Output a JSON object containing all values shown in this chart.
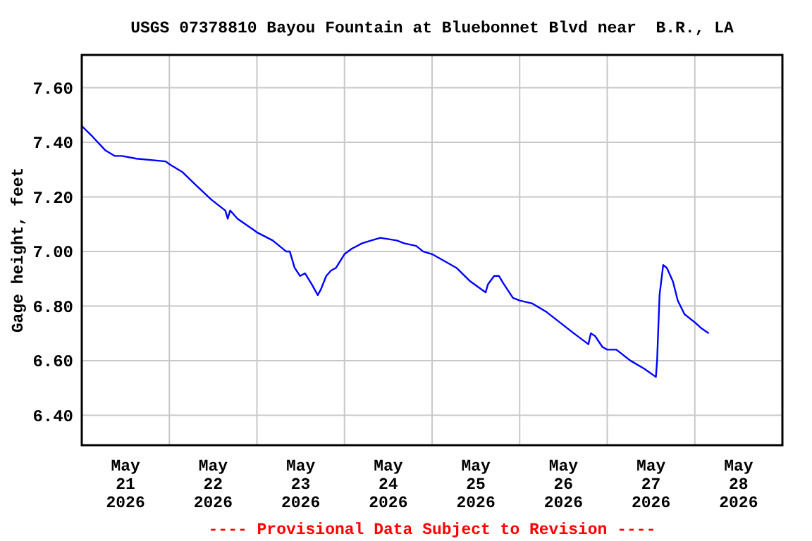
{
  "chart_data": {
    "type": "line",
    "title": "USGS 07378810 Bayou Fountain at Bluebonnet Blvd near  B.R., LA",
    "ylabel": "Gage height, feet",
    "annotations": [
      "---- Provisional Data Subject to Revision ----"
    ],
    "grid": true,
    "xlim": [
      "2026-05-21T00:00",
      "2026-05-29T00:00"
    ],
    "xticks": [
      {
        "value": "2026-05-21T00:00",
        "label": null
      },
      {
        "value": "2026-05-21T12:00",
        "label": "May\n21\n2026"
      },
      {
        "value": "2026-05-22T00:00",
        "label": null
      },
      {
        "value": "2026-05-22T12:00",
        "label": "May\n22\n2026"
      },
      {
        "value": "2026-05-23T00:00",
        "label": null
      },
      {
        "value": "2026-05-23T12:00",
        "label": "May\n23\n2026"
      },
      {
        "value": "2026-05-24T00:00",
        "label": null
      },
      {
        "value": "2026-05-24T12:00",
        "label": "May\n24\n2026"
      },
      {
        "value": "2026-05-25T00:00",
        "label": null
      },
      {
        "value": "2026-05-25T12:00",
        "label": "May\n25\n2026"
      },
      {
        "value": "2026-05-26T00:00",
        "label": null
      },
      {
        "value": "2026-05-26T12:00",
        "label": "May\n26\n2026"
      },
      {
        "value": "2026-05-27T00:00",
        "label": null
      },
      {
        "value": "2026-05-27T12:00",
        "label": "May\n27\n2026"
      },
      {
        "value": "2026-05-28T00:00",
        "label": null
      },
      {
        "value": "2026-05-28T12:00",
        "label": "May\n28\n2026"
      }
    ],
    "ylim": [
      6.29,
      7.72
    ],
    "yticks": [
      {
        "value": 6.4,
        "label": "6.40"
      },
      {
        "value": 6.6,
        "label": "6.60"
      },
      {
        "value": 6.8,
        "label": "6.80"
      },
      {
        "value": 7.0,
        "label": "7.00"
      },
      {
        "value": 7.2,
        "label": "7.20"
      },
      {
        "value": 7.4,
        "label": "7.40"
      },
      {
        "value": 7.6,
        "label": "7.60"
      }
    ],
    "series": [
      {
        "color": "#0000ff",
        "x": [
          "2026-05-21T00:00",
          "2026-05-21T03:00",
          "2026-05-21T06:30",
          "2026-05-21T09:00",
          "2026-05-21T11:00",
          "2026-05-21T15:00",
          "2026-05-21T23:00",
          "2026-05-22T00:00",
          "2026-05-22T03:40",
          "2026-05-22T07:30",
          "2026-05-22T11:30",
          "2026-05-22T15:20",
          "2026-05-22T16:00",
          "2026-05-22T16:40",
          "2026-05-22T18:40",
          "2026-05-22T23:00",
          "2026-05-23T00:00",
          "2026-05-23T04:20",
          "2026-05-23T08:00",
          "2026-05-23T09:00",
          "2026-05-23T10:20",
          "2026-05-23T11:50",
          "2026-05-23T13:10",
          "2026-05-23T15:00",
          "2026-05-23T16:40",
          "2026-05-23T17:30",
          "2026-05-23T19:00",
          "2026-05-23T20:20",
          "2026-05-23T21:40",
          "2026-05-24T00:00",
          "2026-05-24T02:00",
          "2026-05-24T04:50",
          "2026-05-24T07:20",
          "2026-05-24T09:50",
          "2026-05-24T14:20",
          "2026-05-24T16:20",
          "2026-05-24T19:40",
          "2026-05-24T21:30",
          "2026-05-25T00:00",
          "2026-05-25T02:40",
          "2026-05-25T06:40",
          "2026-05-25T10:30",
          "2026-05-25T14:40",
          "2026-05-25T15:20",
          "2026-05-25T17:00",
          "2026-05-25T18:20",
          "2026-05-25T19:40",
          "2026-05-25T22:10",
          "2026-05-26T00:00",
          "2026-05-26T03:20",
          "2026-05-26T07:10",
          "2026-05-26T11:00",
          "2026-05-26T14:50",
          "2026-05-26T18:50",
          "2026-05-26T19:30",
          "2026-05-26T20:40",
          "2026-05-26T22:40",
          "2026-05-27T00:00",
          "2026-05-27T02:30",
          "2026-05-27T06:20",
          "2026-05-27T10:10",
          "2026-05-27T13:20",
          "2026-05-27T13:40",
          "2026-05-27T14:20",
          "2026-05-27T15:20",
          "2026-05-27T16:20",
          "2026-05-27T18:00",
          "2026-05-27T19:20",
          "2026-05-27T21:10",
          "2026-05-28T00:00",
          "2026-05-28T01:40",
          "2026-05-28T03:50"
        ],
        "values": [
          7.46,
          7.42,
          7.37,
          7.35,
          7.35,
          7.34,
          7.33,
          7.32,
          7.29,
          7.24,
          7.19,
          7.15,
          7.12,
          7.15,
          7.12,
          7.08,
          7.07,
          7.04,
          7.0,
          7.0,
          6.94,
          6.91,
          6.92,
          6.88,
          6.84,
          6.86,
          6.91,
          6.93,
          6.94,
          6.99,
          7.01,
          7.03,
          7.04,
          7.05,
          7.04,
          7.03,
          7.02,
          7.0,
          6.99,
          6.97,
          6.94,
          6.89,
          6.85,
          6.88,
          6.91,
          6.91,
          6.88,
          6.83,
          6.82,
          6.81,
          6.78,
          6.74,
          6.7,
          6.66,
          6.7,
          6.69,
          6.65,
          6.64,
          6.64,
          6.6,
          6.57,
          6.54,
          6.6,
          6.84,
          6.95,
          6.94,
          6.89,
          6.82,
          6.77,
          6.74,
          6.72,
          6.7
        ]
      }
    ]
  }
}
